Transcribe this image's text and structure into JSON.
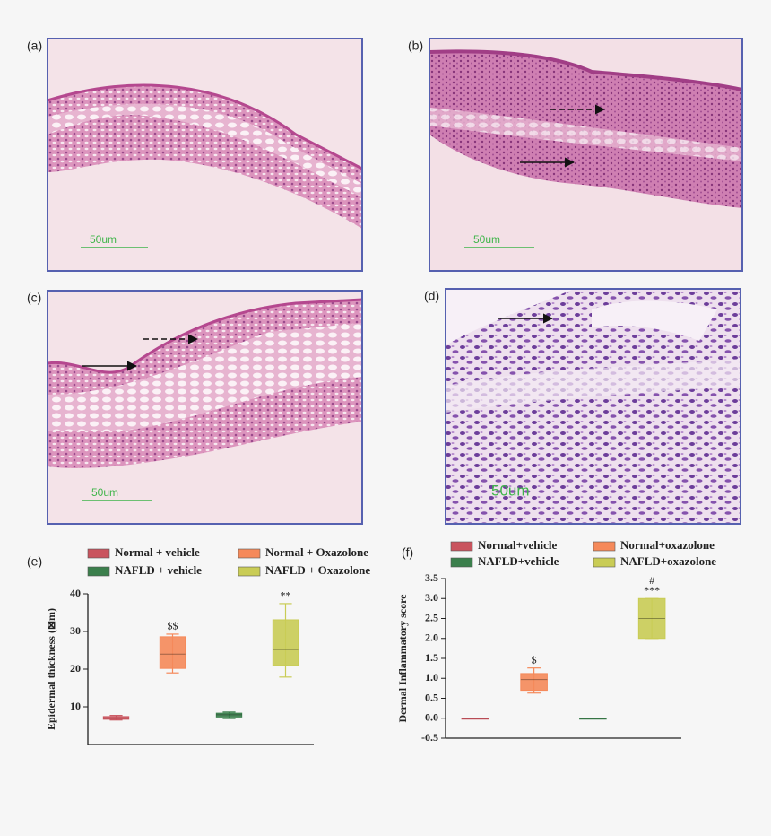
{
  "panels": [
    {
      "label": "(a)",
      "scale": "50um"
    },
    {
      "label": "(b)",
      "scale": "50um"
    },
    {
      "label": "(c)",
      "scale": "50um"
    },
    {
      "label": "(d)",
      "scale": "50um"
    }
  ],
  "chart_data": [
    {
      "type": "box",
      "panel_label": "(e)",
      "ylabel": "Epidermal thickness (⊠m)",
      "ylim": [
        0,
        40
      ],
      "yticks": [
        10,
        20,
        30,
        40
      ],
      "series": [
        {
          "name": "Normal + vehicle",
          "color": "#c9545e",
          "min": 6.5,
          "q1": 6.7,
          "median": 7,
          "q3": 7.4,
          "max": 7.7
        },
        {
          "name": "Normal + Oxazolone",
          "color": "#f5895a",
          "min": 19,
          "q1": 20.2,
          "median": 24,
          "q3": 28.6,
          "max": 29.3,
          "annotations": [
            "$$"
          ]
        },
        {
          "name": "NAFLD + vehicle",
          "color": "#3b7f4c",
          "min": 6.9,
          "q1": 7.3,
          "median": 7.9,
          "q3": 8.3,
          "max": 8.6
        },
        {
          "name": "NAFLD + Oxazolone",
          "color": "#c9cc55",
          "min": 17.9,
          "q1": 21,
          "median": 25.2,
          "q3": 33.1,
          "max": 37.4,
          "annotations": [
            "**"
          ]
        }
      ]
    },
    {
      "type": "box",
      "panel_label": "(f)",
      "ylabel": "Dermal Inflammatory score",
      "ylim": [
        -0.5,
        3.5
      ],
      "yticks": [
        -0.5,
        {
          "value": 0,
          "label": "0.0"
        },
        0.5,
        {
          "value": 1,
          "label": "1.0"
        },
        1.5,
        {
          "value": 2,
          "label": "2.0"
        },
        2.5,
        {
          "value": 3,
          "label": "3.0"
        },
        3.5
      ],
      "series": [
        {
          "name": "Normal+vehicle",
          "color": "#c9545e",
          "min": 0,
          "q1": 0,
          "median": 0,
          "q3": 0,
          "max": 0
        },
        {
          "name": "Normal+oxazolone",
          "color": "#f5895a",
          "min": 0.63,
          "q1": 0.7,
          "median": 0.97,
          "q3": 1.12,
          "max": 1.26,
          "annotations": [
            "$"
          ]
        },
        {
          "name": "NAFLD+vehicle",
          "color": "#3b7f4c",
          "min": 0,
          "q1": 0,
          "median": 0,
          "q3": 0,
          "max": 0
        },
        {
          "name": "NAFLD+oxazolone",
          "color": "#c9cc55",
          "min": 2,
          "q1": 2,
          "median": 2.5,
          "q3": 3,
          "max": 3,
          "annotations": [
            "#",
            "***"
          ]
        }
      ]
    }
  ]
}
